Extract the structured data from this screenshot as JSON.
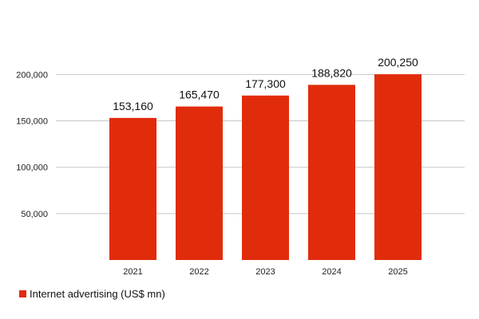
{
  "chart_data": {
    "type": "bar",
    "categories": [
      "2021",
      "2022",
      "2023",
      "2024",
      "2025"
    ],
    "series": [
      {
        "name": "Internet advertising (US$ mn)",
        "values": [
          153160,
          165470,
          177300,
          188820,
          200250
        ],
        "labels": [
          "153,160",
          "165,470",
          "177,300",
          "188,820",
          "200,250"
        ],
        "color": "#e12c0c"
      }
    ],
    "y_ticks": [
      50000,
      100000,
      150000,
      200000
    ],
    "y_tick_labels": [
      "50,000",
      "100,000",
      "150,000",
      "200,000"
    ],
    "ylim": [
      0,
      200000
    ],
    "grid": true,
    "legend_position": "bottom-left",
    "gridline_color": "#c8c8c8"
  }
}
